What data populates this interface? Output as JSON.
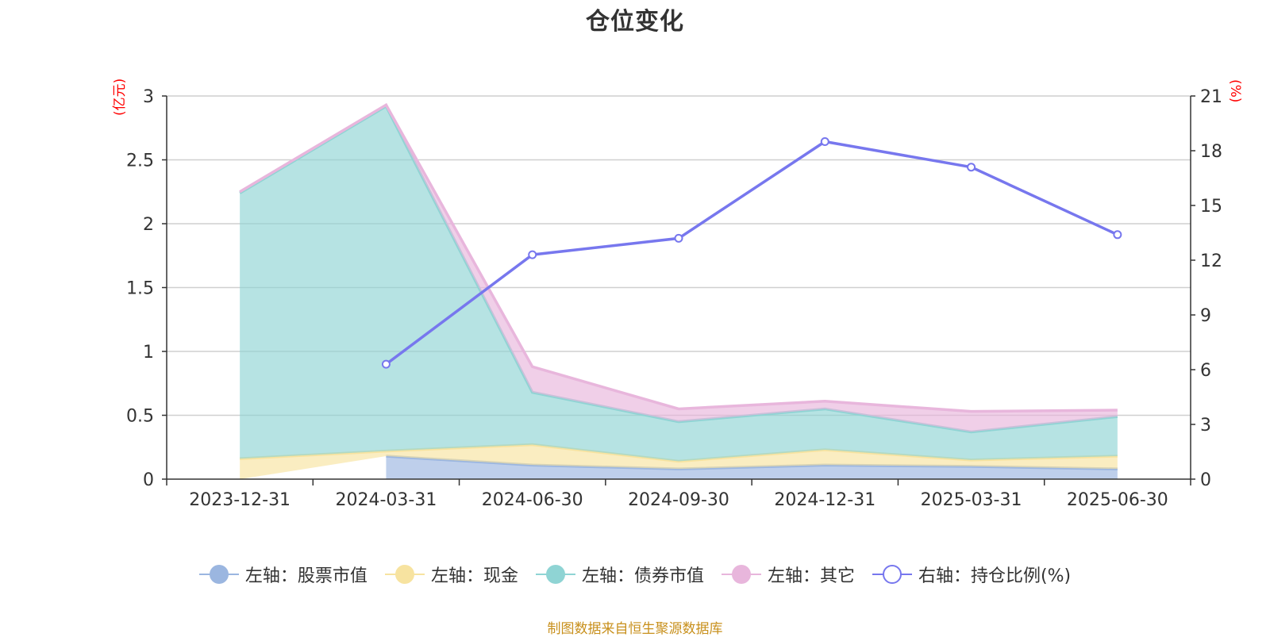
{
  "title": "仓位变化",
  "units": {
    "left": "(亿元)",
    "right": "(%)"
  },
  "legend": [
    {
      "label": "左轴：股票市值",
      "color": "#9bb6e0",
      "marker": "filled"
    },
    {
      "label": "左轴：现金",
      "color": "#f7e3a0",
      "marker": "filled"
    },
    {
      "label": "左轴：债券市值",
      "color": "#8fd4d4",
      "marker": "filled"
    },
    {
      "label": "左轴：其它",
      "color": "#e8b6dc",
      "marker": "filled"
    },
    {
      "label": "右轴：持仓比例(%)",
      "color": "#7777ee",
      "marker": "hollow"
    }
  ],
  "source": "制图数据来自恒生聚源数据库",
  "chart_data": {
    "type": "area",
    "title": "仓位变化",
    "categories": [
      "2023-12-31",
      "2024-03-31",
      "2024-06-30",
      "2024-09-30",
      "2024-12-31",
      "2025-03-31",
      "2025-06-30"
    ],
    "left_axis": {
      "unit": "(亿元)",
      "ylim": [
        0,
        3
      ],
      "ticks": [
        "0",
        "0.5",
        "1",
        "1.5",
        "2",
        "2.5",
        "3"
      ]
    },
    "right_axis": {
      "unit": "(%)",
      "ylim": [
        0,
        21
      ],
      "ticks": [
        "0",
        "3",
        "6",
        "9",
        "12",
        "15",
        "18",
        "21"
      ]
    },
    "stacked_series": [
      {
        "name": "左轴：股票市值",
        "axis": "left",
        "color": "#9bb6e0",
        "values": [
          null,
          0.18,
          0.11,
          0.08,
          0.11,
          0.1,
          0.08
        ]
      },
      {
        "name": "左轴：现金",
        "axis": "left",
        "color": "#f7e3a0",
        "values": [
          0.16,
          0.04,
          0.16,
          0.06,
          0.12,
          0.05,
          0.1
        ]
      },
      {
        "name": "左轴：债券市值",
        "axis": "left",
        "color": "#8fd4d4",
        "values": [
          2.08,
          2.7,
          0.41,
          0.31,
          0.32,
          0.22,
          0.31
        ]
      },
      {
        "name": "左轴：其它",
        "axis": "left",
        "color": "#e8b6dc",
        "values": [
          0.01,
          0.01,
          0.2,
          0.1,
          0.06,
          0.16,
          0.05
        ]
      }
    ],
    "line_series": {
      "name": "右轴：持仓比例(%)",
      "axis": "right",
      "color": "#7777ee",
      "values": [
        null,
        6.3,
        12.3,
        13.2,
        18.5,
        17.1,
        13.4
      ]
    },
    "grid": true,
    "legend_position": "bottom"
  }
}
